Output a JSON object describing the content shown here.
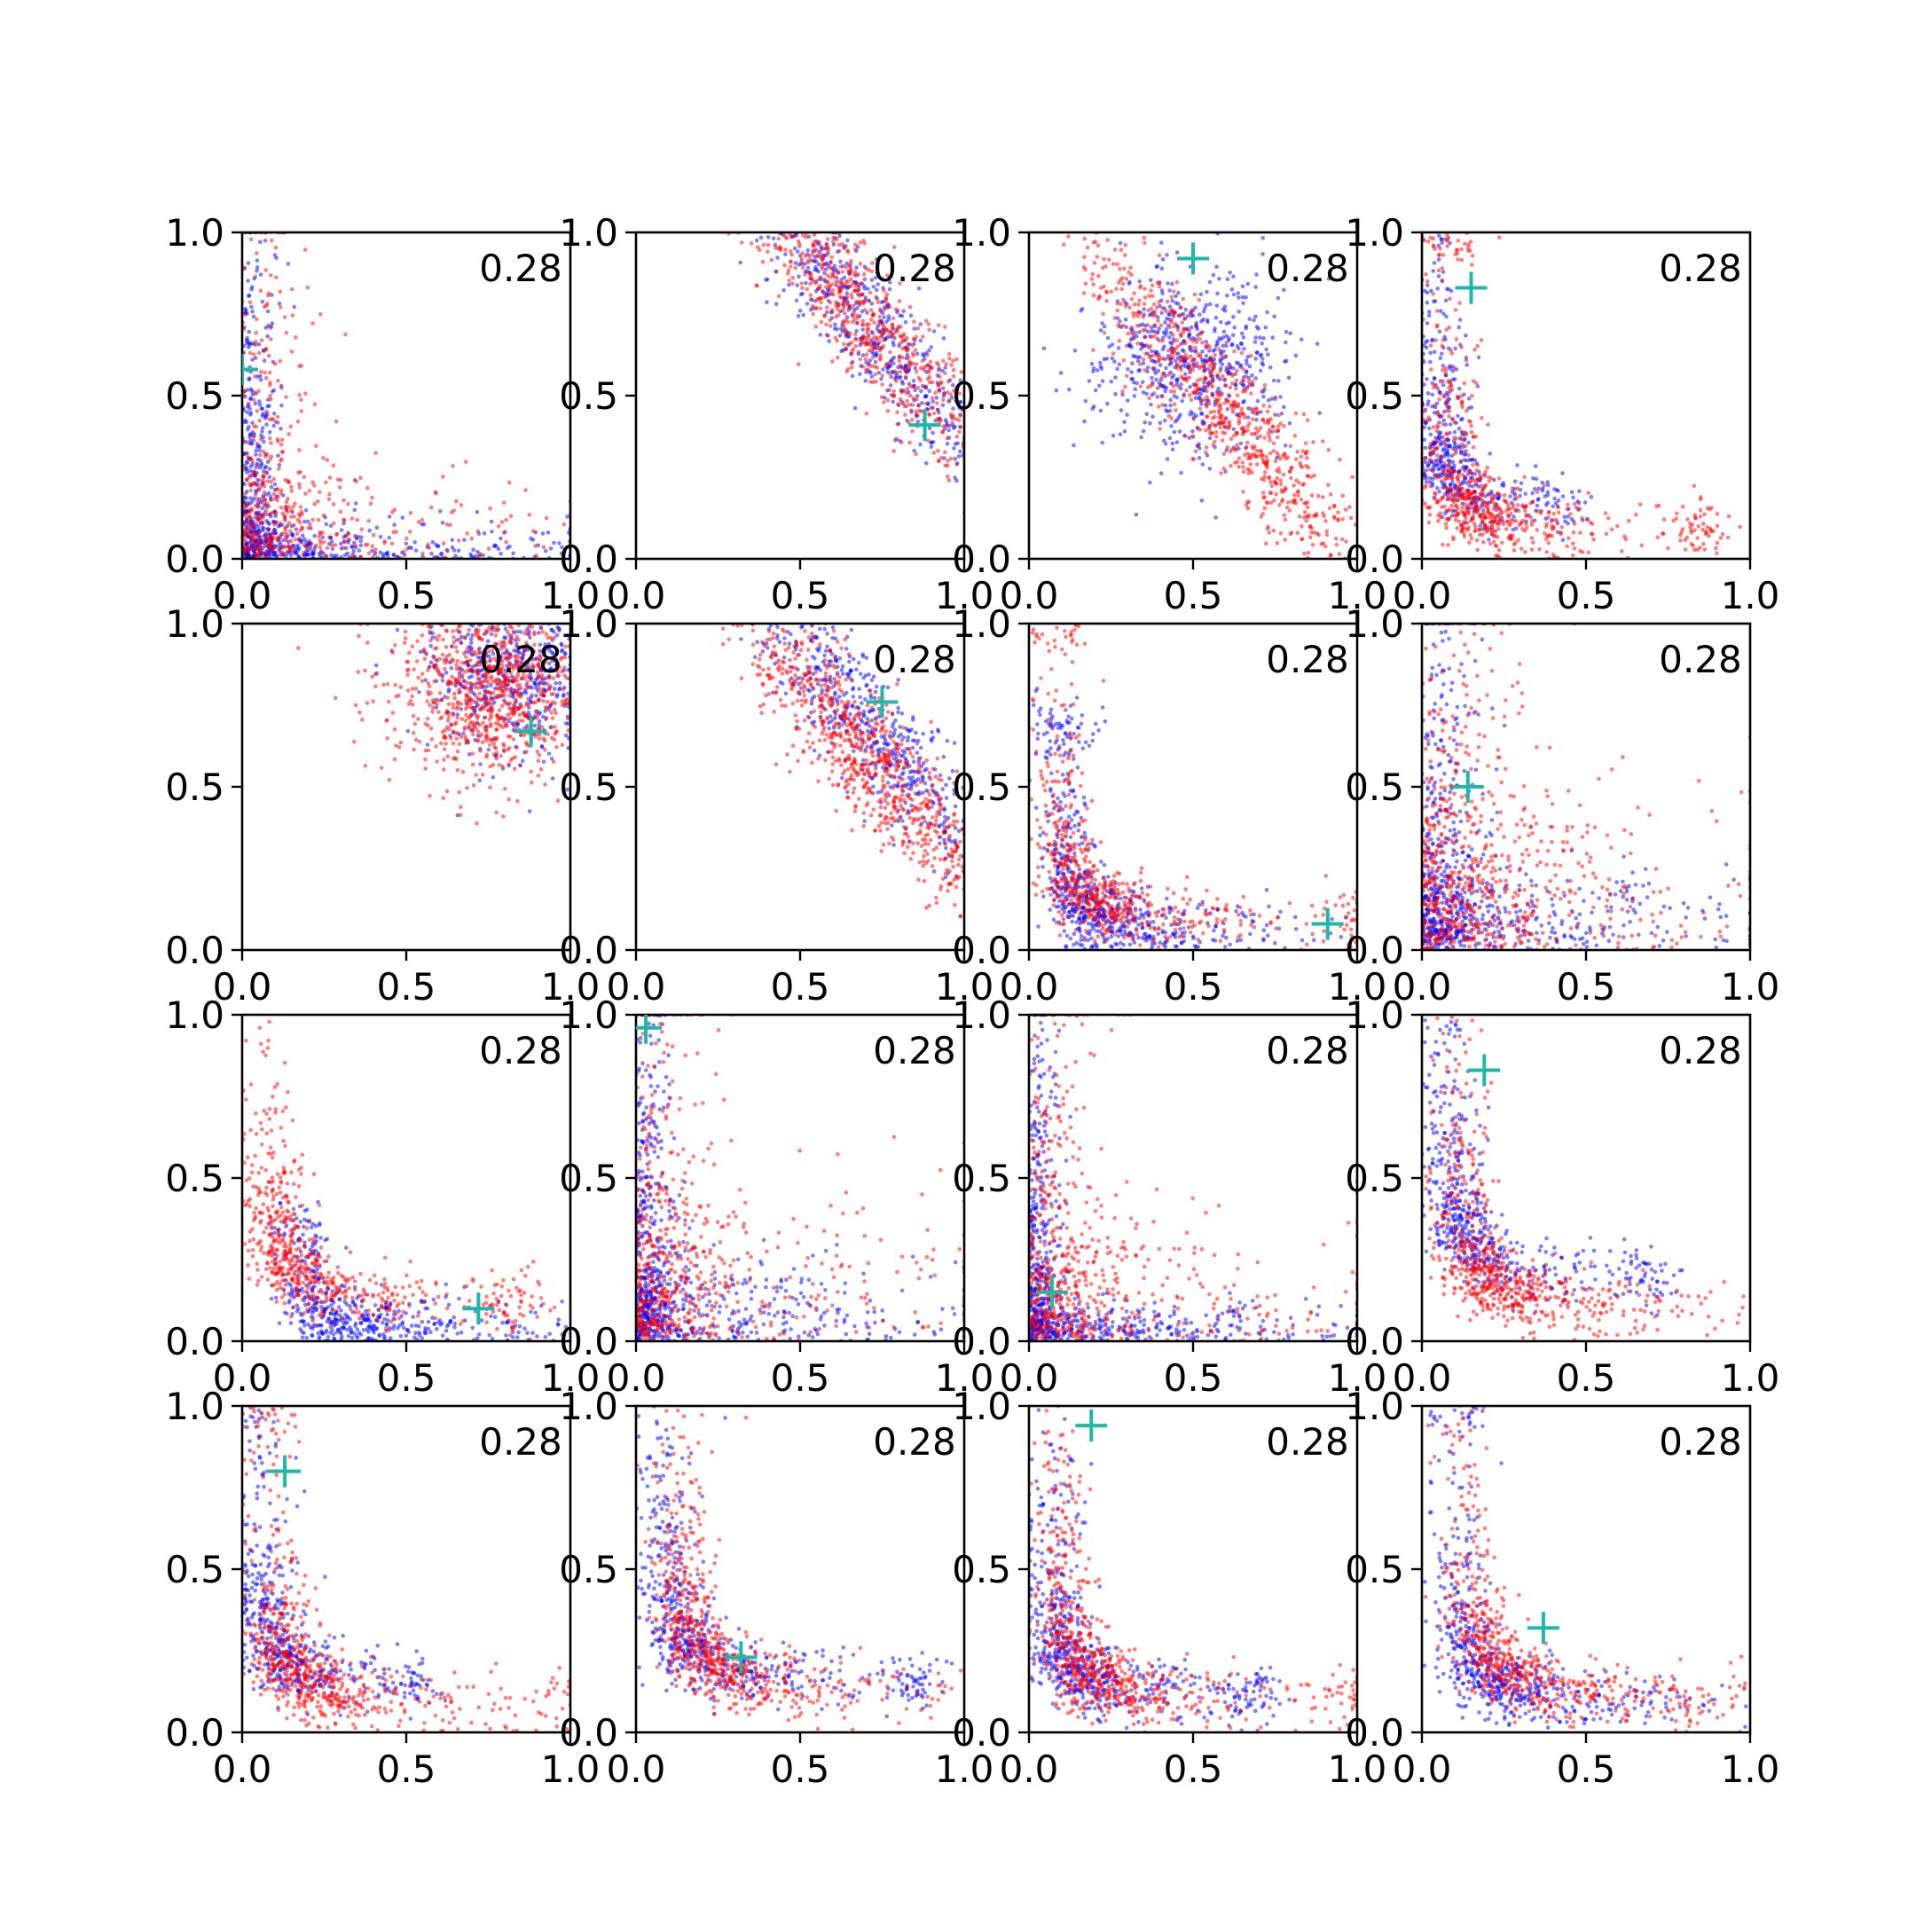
{
  "chart_data": {
    "type": "scatter",
    "layout": "4x4 grid of scatter panels",
    "xlim": [
      0,
      1
    ],
    "ylim": [
      0,
      1
    ],
    "xticks": [
      "0.0",
      "0.5",
      "1.0"
    ],
    "yticks": [
      "0.0",
      "0.5",
      "1.0"
    ],
    "series_colors": {
      "series_a": "#ff0000",
      "series_b": "#0000ff",
      "marker": "#1fb8a8"
    },
    "marker_style": "plus",
    "panels": [
      {
        "label": "0.28",
        "marker": [
          0.0,
          0.58
        ],
        "blue": {
          "shape": "L",
          "cx": 0.05,
          "cy": 0.05,
          "n": 700
        },
        "red": {
          "shape": "L",
          "cx": 0.1,
          "cy": 0.12,
          "n": 500
        }
      },
      {
        "label": "0.28",
        "marker": [
          0.88,
          0.41
        ],
        "blue": {
          "shape": "band",
          "cx": 0.72,
          "cy": 0.7,
          "n": 600
        },
        "red": {
          "shape": "band",
          "cx": 0.68,
          "cy": 0.75,
          "n": 800
        }
      },
      {
        "label": "0.28",
        "marker": [
          0.5,
          0.92
        ],
        "blue": {
          "shape": "blob",
          "cx": 0.5,
          "cy": 0.6,
          "n": 600
        },
        "red": {
          "shape": "band",
          "cx": 0.6,
          "cy": 0.45,
          "n": 800
        }
      },
      {
        "label": "0.28",
        "marker": [
          0.15,
          0.83
        ],
        "blue": {
          "shape": "curve",
          "cx": 0.12,
          "cy": 0.6,
          "n": 600
        },
        "red": {
          "shape": "curve",
          "cx": 0.25,
          "cy": 0.3,
          "n": 700
        }
      },
      {
        "label": "0.28",
        "marker": [
          0.88,
          0.67
        ],
        "blue": {
          "shape": "blob",
          "cx": 0.85,
          "cy": 0.85,
          "n": 600
        },
        "red": {
          "shape": "blob",
          "cx": 0.75,
          "cy": 0.8,
          "n": 900
        }
      },
      {
        "label": "0.28",
        "marker": [
          0.75,
          0.76
        ],
        "blue": {
          "shape": "band",
          "cx": 0.7,
          "cy": 0.7,
          "n": 600
        },
        "red": {
          "shape": "band",
          "cx": 0.7,
          "cy": 0.6,
          "n": 900
        }
      },
      {
        "label": "0.28",
        "marker": [
          0.91,
          0.08
        ],
        "blue": {
          "shape": "curve",
          "cx": 0.35,
          "cy": 0.2,
          "n": 700
        },
        "red": {
          "shape": "curve",
          "cx": 0.3,
          "cy": 0.3,
          "n": 700
        }
      },
      {
        "label": "0.28",
        "marker": [
          0.14,
          0.5
        ],
        "blue": {
          "shape": "L",
          "cx": 0.08,
          "cy": 0.1,
          "n": 700
        },
        "red": {
          "shape": "L",
          "cx": 0.15,
          "cy": 0.2,
          "n": 700
        }
      },
      {
        "label": "0.28",
        "marker": [
          0.72,
          0.1
        ],
        "blue": {
          "shape": "curve",
          "cx": 0.6,
          "cy": 0.1,
          "n": 600
        },
        "red": {
          "shape": "curve",
          "cx": 0.25,
          "cy": 0.45,
          "n": 700
        }
      },
      {
        "label": "0.28",
        "marker": [
          0.03,
          0.96
        ],
        "blue": {
          "shape": "L",
          "cx": 0.05,
          "cy": 0.1,
          "n": 700
        },
        "red": {
          "shape": "L",
          "cx": 0.1,
          "cy": 0.2,
          "n": 600
        }
      },
      {
        "label": "0.28",
        "marker": [
          0.07,
          0.15
        ],
        "blue": {
          "shape": "L",
          "cx": 0.04,
          "cy": 0.05,
          "n": 700
        },
        "red": {
          "shape": "L",
          "cx": 0.1,
          "cy": 0.15,
          "n": 600
        }
      },
      {
        "label": "0.28",
        "marker": [
          0.19,
          0.83
        ],
        "blue": {
          "shape": "curve",
          "cx": 0.2,
          "cy": 0.7,
          "n": 700
        },
        "red": {
          "shape": "curve",
          "cx": 0.35,
          "cy": 0.35,
          "n": 800
        }
      },
      {
        "label": "0.28",
        "marker": [
          0.13,
          0.8
        ],
        "blue": {
          "shape": "curve",
          "cx": 0.15,
          "cy": 0.55,
          "n": 600
        },
        "red": {
          "shape": "curve",
          "cx": 0.3,
          "cy": 0.3,
          "n": 700
        }
      },
      {
        "label": "0.28",
        "marker": [
          0.32,
          0.23
        ],
        "blue": {
          "shape": "curve",
          "cx": 0.25,
          "cy": 0.55,
          "n": 700
        },
        "red": {
          "shape": "curve",
          "cx": 0.4,
          "cy": 0.4,
          "n": 800
        }
      },
      {
        "label": "0.28",
        "marker": [
          0.19,
          0.94
        ],
        "blue": {
          "shape": "curve",
          "cx": 0.2,
          "cy": 0.4,
          "n": 700
        },
        "red": {
          "shape": "curve",
          "cx": 0.3,
          "cy": 0.35,
          "n": 800
        }
      },
      {
        "label": "0.28",
        "marker": [
          0.37,
          0.32
        ],
        "blue": {
          "shape": "curve",
          "cx": 0.35,
          "cy": 0.3,
          "n": 700
        },
        "red": {
          "shape": "curve",
          "cx": 0.45,
          "cy": 0.35,
          "n": 800
        }
      }
    ]
  }
}
